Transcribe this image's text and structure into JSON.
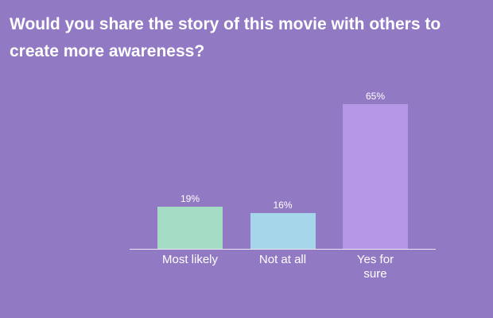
{
  "chart_data": {
    "type": "bar",
    "title": "Would you share the story of this movie with others to create more awareness?",
    "categories": [
      "Most likely",
      "Not at all",
      "Yes for sure"
    ],
    "values": [
      19,
      16,
      65
    ],
    "value_labels": [
      "19%",
      "16%",
      "65%"
    ],
    "colors": [
      "#a4dcc6",
      "#a6d6e9",
      "#b696e6"
    ]
  }
}
